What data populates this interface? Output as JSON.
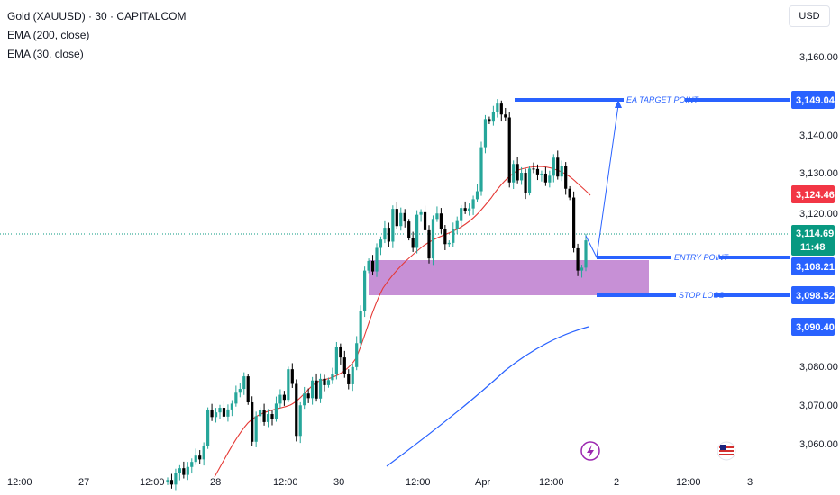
{
  "header": {
    "title": "Gold (XAUUSD) · 30 · CAPITALCOM",
    "indicators": [
      "EMA (200, close)",
      "EMA (30, close)"
    ]
  },
  "currency_button": "USD",
  "colors": {
    "up": "#26a69a",
    "down": "#000000",
    "ema30": "#e53935",
    "ema200": "#2962ff",
    "zone": "#c790d6",
    "annotation": "#2962ff",
    "ema30_badge": "#f23645",
    "price_badge": "#089981",
    "level_badge": "#2962ff"
  },
  "chart_data": {
    "type": "candlestick",
    "symbol": "Gold (XAUUSD)",
    "interval": "30",
    "x_labels": [
      "12:00",
      "27",
      "12:00",
      "28",
      "12:00",
      "30",
      "12:00",
      "Apr",
      "12:00",
      "2",
      "12:00",
      "3"
    ],
    "y_ticks": [
      "3,160.00",
      "3,140.00",
      "3,130.00",
      "3,120.00",
      "3,080.00",
      "3,070.00",
      "3,060.00"
    ],
    "ylim": [
      3054,
      3172
    ],
    "levels": [
      {
        "label": "EA TARGET POINT",
        "price": 3149.04,
        "price_text": "3,149.04"
      },
      {
        "label": "ENTRY POINT",
        "price": 3108.21,
        "price_text": "3,108.21"
      },
      {
        "label": "STOP LOSS",
        "price": 3098.52,
        "price_text": "3,098.52"
      }
    ],
    "zone": {
      "from": 3097.5,
      "to": 3108.2
    },
    "last_price": {
      "price": 3114.69,
      "text": "3,114.69",
      "countdown": "11:48"
    },
    "ema30_value": {
      "price": 3124.46,
      "text": "3,124.46"
    },
    "ema200_value": {
      "price": 3090.4,
      "text": "3,090.40"
    },
    "candles_close": [
      3057.6,
      3056.5,
      3059.2,
      3060.4,
      3058.8,
      3060.7,
      3061.9,
      3063.4,
      3062.5,
      3065.6,
      3074.3,
      3072.6,
      3073.7,
      3074.8,
      3072.7,
      3074.4,
      3075.8,
      3078.4,
      3079.3,
      3082.3,
      3076.1,
      3066.7,
      3072.8,
      3074.2,
      3071.4,
      3073.3,
      3072.2,
      3075.8,
      3077.9,
      3076.7,
      3084.0,
      3080.5,
      3068.1,
      3075.4,
      3078.2,
      3077.1,
      3081.3,
      3077.0,
      3081.7,
      3080.2,
      3081.4,
      3082.9,
      3089.4,
      3086.8,
      3082.8,
      3080.4,
      3084.5,
      3090.2,
      3097.9,
      3107.5,
      3109.8,
      3107.3,
      3112.9,
      3114.9,
      3117.7,
      3114.4,
      3122.2,
      3118.1,
      3121.2,
      3119.2,
      3115.3,
      3112.9,
      3120.8,
      3121.4,
      3117.1,
      3110.4,
      3119.8,
      3121.1,
      3117.4,
      3113.8,
      3114.1,
      3117.5,
      3119.3,
      3122.4,
      3121.8,
      3122.3,
      3124.5,
      3126.4,
      3136.9,
      3143.6,
      3143.0,
      3145.3,
      3147.3,
      3144.7,
      3144.0,
      3128.5,
      3132.9,
      3129.0,
      3130.8,
      3126.0,
      3131.8,
      3131.7,
      3130.4,
      3130.6,
      3128.5,
      3130.1,
      3134.4,
      3129.9,
      3132.4,
      3127.0,
      3124.9,
      3112.8,
      3107.5,
      3108.2,
      3114.7
    ]
  }
}
